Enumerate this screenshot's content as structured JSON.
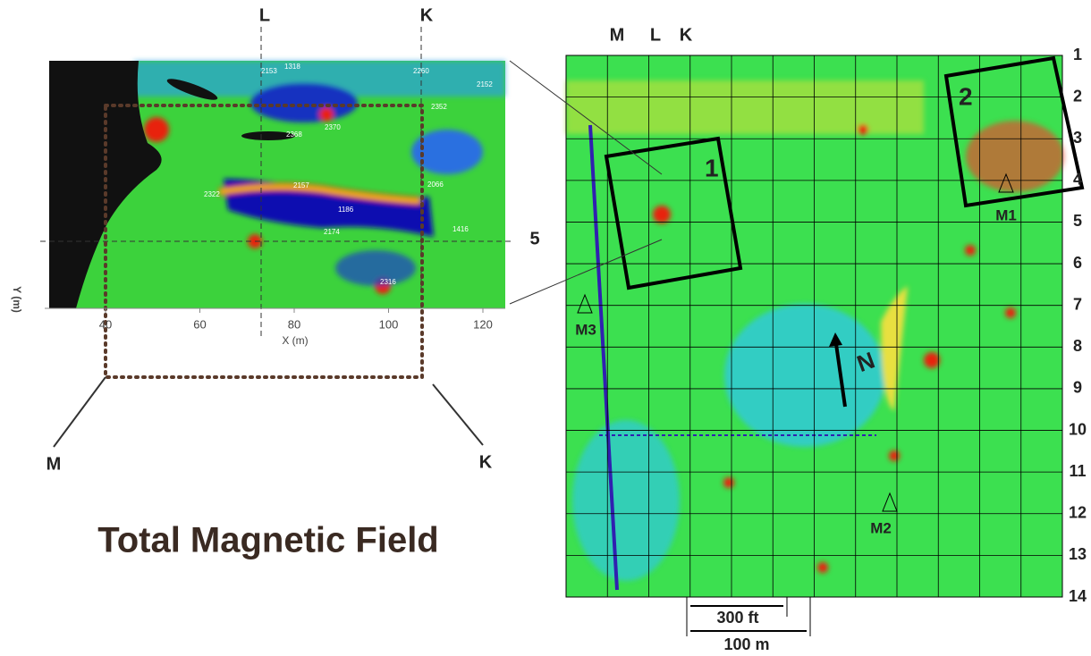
{
  "title": "Total Magnetic Field",
  "left_panel": {
    "section_labels": {
      "top": [
        "L",
        "K"
      ],
      "right": "5",
      "bottom": [
        "M",
        "K"
      ]
    },
    "x_axis": {
      "label": "X (m)",
      "ticks": [
        40,
        60,
        80,
        100,
        120
      ]
    },
    "y_axis": {
      "label": "Y (m)"
    },
    "station_labels": [
      "2153",
      "1318",
      "2260",
      "2152",
      "2352",
      "2370",
      "2368",
      "2322",
      "2157",
      "2066",
      "1186",
      "2174",
      "1416",
      "2316"
    ]
  },
  "right_map": {
    "column_labels": [
      "M",
      "L",
      "K"
    ],
    "row_labels": [
      "1",
      "2",
      "3",
      "4",
      "5",
      "6",
      "7",
      "8",
      "9",
      "10",
      "11",
      "12",
      "13",
      "14"
    ],
    "box_labels": [
      "1",
      "2"
    ],
    "markers": [
      "M1",
      "M2",
      "M3"
    ],
    "north": "N",
    "scale": [
      "300 ft",
      "100 m"
    ]
  }
}
